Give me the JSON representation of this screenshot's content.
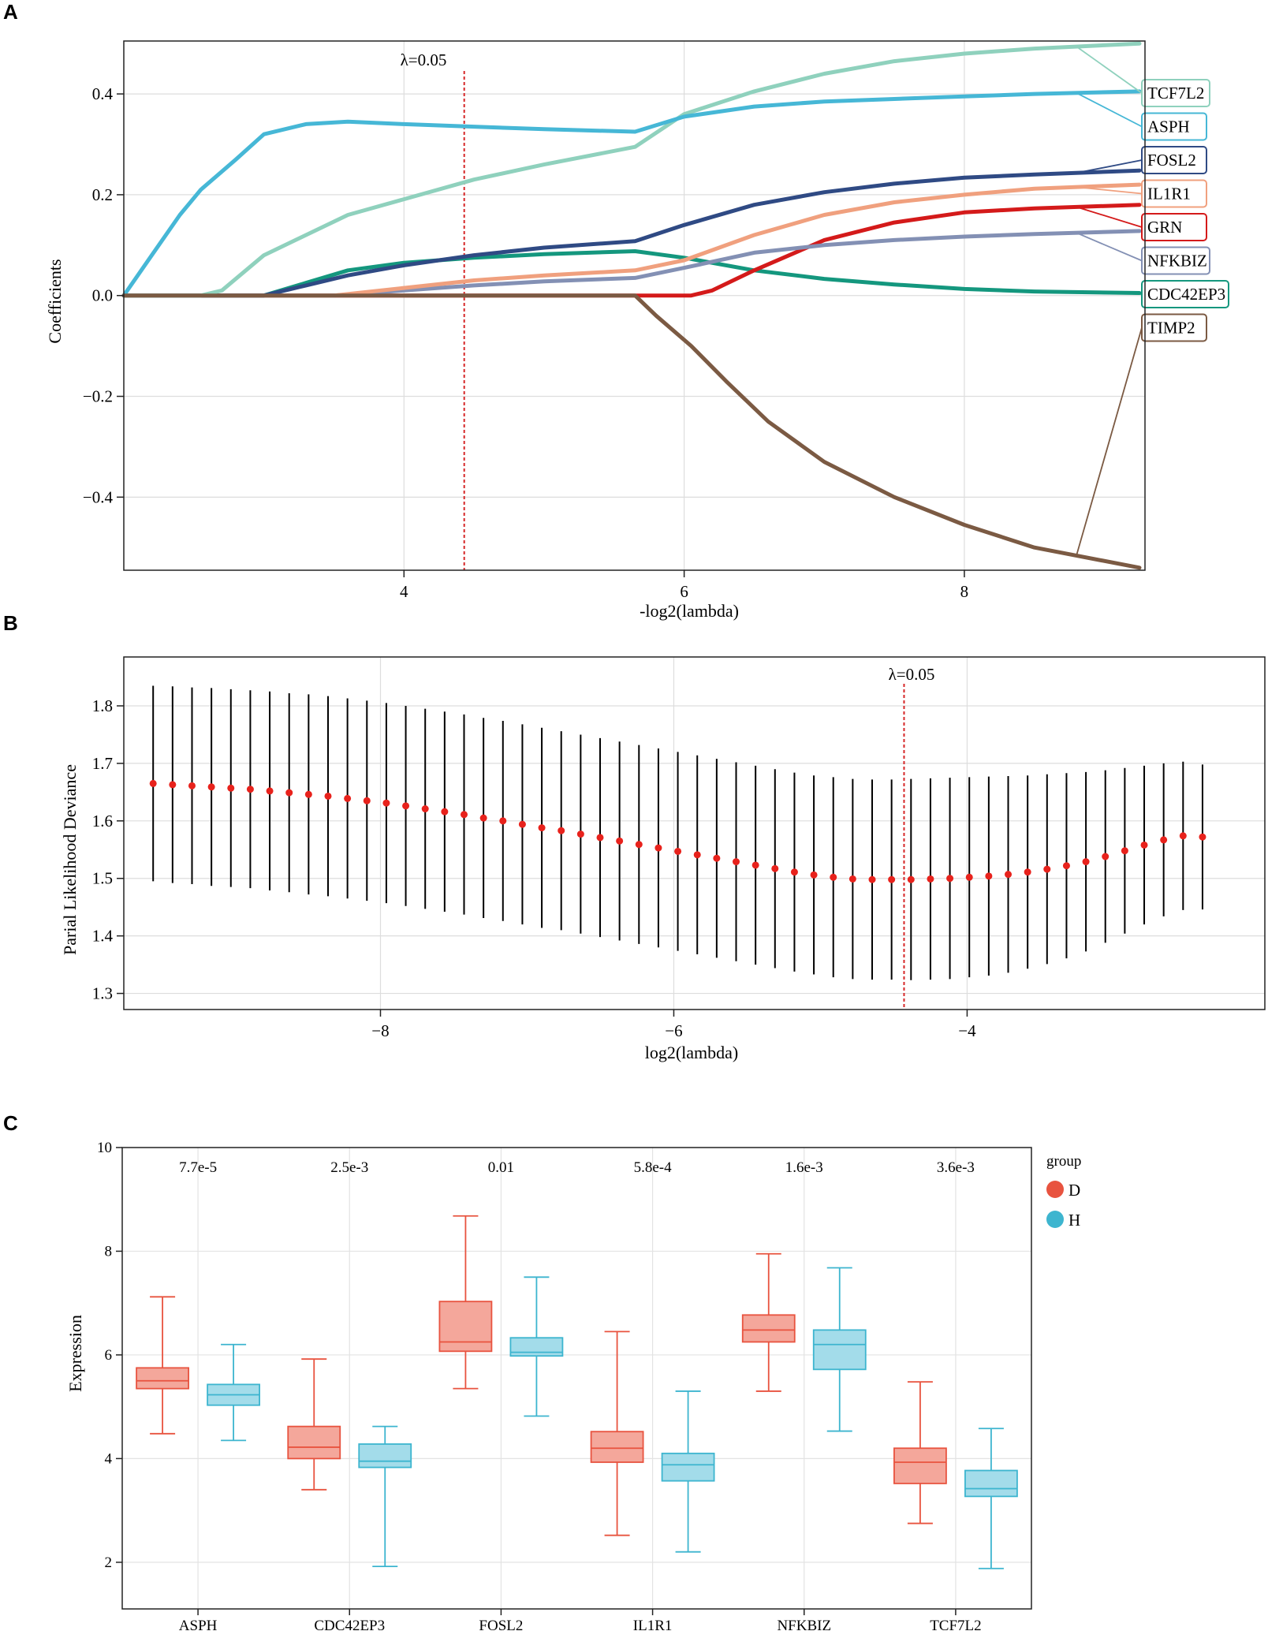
{
  "panels": {
    "a": "A",
    "b": "B",
    "c": "C"
  },
  "chart_data": [
    {
      "type": "line",
      "id": "lasso-coefficient-paths",
      "title": "",
      "xlabel": "-log2(lambda)",
      "ylabel": "Coefficients",
      "xlim": [
        2.0,
        9.25
      ],
      "ylim": [
        -0.545,
        0.505
      ],
      "xticks": [
        4,
        6,
        8
      ],
      "xtick_labels": [
        "4",
        "6",
        "8"
      ],
      "yticks": [
        -0.4,
        -0.2,
        0.0,
        0.2,
        0.4
      ],
      "ytick_labels": [
        "−0.4",
        "−0.2",
        "0.0",
        "0.2",
        "0.4"
      ],
      "grid": true,
      "vline": {
        "x": 4.43,
        "label": "λ=0.05",
        "color": "#d62728"
      },
      "series": [
        {
          "name": "TCF7L2",
          "color": "#8fd1bd",
          "x": [
            2.0,
            2.55,
            2.7,
            3.0,
            3.6,
            4.5,
            5.0,
            5.65,
            6.0,
            6.5,
            7.0,
            7.5,
            8.0,
            8.5,
            9.25
          ],
          "y": [
            0.0,
            0.0,
            0.01,
            0.08,
            0.16,
            0.23,
            0.26,
            0.295,
            0.36,
            0.405,
            0.44,
            0.465,
            0.48,
            0.49,
            0.5
          ],
          "label_y": 0.4
        },
        {
          "name": "ASPH",
          "color": "#46b7d6",
          "x": [
            2.0,
            2.2,
            2.4,
            2.55,
            2.8,
            3.0,
            3.3,
            3.6,
            4.0,
            4.5,
            5.0,
            5.65,
            6.0,
            6.5,
            7.0,
            7.5,
            8.0,
            8.5,
            9.25
          ],
          "y": [
            0.0,
            0.08,
            0.16,
            0.21,
            0.27,
            0.32,
            0.34,
            0.345,
            0.34,
            0.335,
            0.33,
            0.325,
            0.355,
            0.375,
            0.385,
            0.39,
            0.395,
            0.4,
            0.405
          ],
          "label_y": 0.335
        },
        {
          "name": "FOSL2",
          "color": "#2f4a84",
          "x": [
            2.0,
            2.7,
            3.0,
            3.3,
            3.6,
            4.0,
            4.5,
            5.0,
            5.65,
            6.0,
            6.5,
            7.0,
            7.5,
            8.0,
            8.5,
            9.25
          ],
          "y": [
            0.0,
            0.0,
            0.0,
            0.02,
            0.04,
            0.06,
            0.08,
            0.095,
            0.108,
            0.14,
            0.18,
            0.205,
            0.222,
            0.234,
            0.24,
            0.248
          ],
          "label_y": 0.27
        },
        {
          "name": "IL1R1",
          "color": "#f0a07e",
          "x": [
            2.0,
            3.5,
            4.0,
            4.5,
            5.0,
            5.65,
            6.0,
            6.5,
            7.0,
            7.5,
            8.0,
            8.5,
            9.25
          ],
          "y": [
            0.0,
            0.0,
            0.015,
            0.03,
            0.04,
            0.05,
            0.07,
            0.12,
            0.16,
            0.185,
            0.2,
            0.212,
            0.22
          ],
          "label_y": 0.205
        },
        {
          "name": "GRN",
          "color": "#d41a1a",
          "x": [
            2.0,
            5.65,
            6.05,
            6.2,
            6.5,
            7.0,
            7.5,
            8.0,
            8.5,
            9.25
          ],
          "y": [
            0.0,
            0.0,
            0.0,
            0.01,
            0.05,
            0.11,
            0.145,
            0.165,
            0.173,
            0.18
          ],
          "label_y": 0.14
        },
        {
          "name": "NFKBIZ",
          "color": "#8390b4",
          "x": [
            2.0,
            3.5,
            4.0,
            4.5,
            5.0,
            5.65,
            6.0,
            6.5,
            7.0,
            7.5,
            8.0,
            8.5,
            9.25
          ],
          "y": [
            0.0,
            0.0,
            0.01,
            0.02,
            0.028,
            0.035,
            0.055,
            0.085,
            0.1,
            0.11,
            0.117,
            0.122,
            0.128
          ],
          "label_y": 0.075
        },
        {
          "name": "CDC42EP3",
          "color": "#14977e",
          "x": [
            2.0,
            3.0,
            3.3,
            3.6,
            4.0,
            4.5,
            5.0,
            5.65,
            6.0,
            6.5,
            7.0,
            7.5,
            8.0,
            8.5,
            9.25
          ],
          "y": [
            0.0,
            0.0,
            0.025,
            0.05,
            0.065,
            0.075,
            0.082,
            0.088,
            0.075,
            0.05,
            0.033,
            0.022,
            0.013,
            0.008,
            0.005
          ],
          "label_y": 0.005
        },
        {
          "name": "TIMP2",
          "color": "#7b5a43",
          "x": [
            2.0,
            5.65,
            5.8,
            6.05,
            6.3,
            6.6,
            7.0,
            7.5,
            8.0,
            8.5,
            9.25
          ],
          "y": [
            0.0,
            0.0,
            -0.04,
            -0.1,
            -0.17,
            -0.25,
            -0.33,
            -0.4,
            -0.455,
            -0.5,
            -0.54
          ],
          "label_y": -0.06
        }
      ]
    },
    {
      "type": "scatter",
      "id": "cv-deviance",
      "title": "",
      "xlabel": "log2(lambda)",
      "ylabel": "Parial Likelihood Deviance",
      "xlim": [
        -9.75,
        -1.97
      ],
      "ylim": [
        1.272,
        1.885
      ],
      "xticks": [
        -8,
        -6,
        -4
      ],
      "xtick_labels": [
        "−8",
        "−6",
        "−4"
      ],
      "yticks": [
        1.3,
        1.4,
        1.5,
        1.6,
        1.7,
        1.8
      ],
      "ytick_labels": [
        "1.3",
        "1.4",
        "1.5",
        "1.6",
        "1.7",
        "1.8"
      ],
      "grid": true,
      "vline": {
        "x": -4.43,
        "label": "λ=0.05",
        "color": "#d62728"
      },
      "point_color": "#e8221c",
      "errorbar_color": "#000000",
      "x_start": -9.55,
      "x_step": 0.1325,
      "mean": [
        1.665,
        1.663,
        1.661,
        1.659,
        1.657,
        1.655,
        1.652,
        1.649,
        1.646,
        1.643,
        1.639,
        1.635,
        1.631,
        1.626,
        1.621,
        1.616,
        1.611,
        1.605,
        1.6,
        1.594,
        1.588,
        1.583,
        1.577,
        1.571,
        1.565,
        1.559,
        1.553,
        1.547,
        1.541,
        1.535,
        1.529,
        1.523,
        1.517,
        1.511,
        1.506,
        1.502,
        1.499,
        1.498,
        1.498,
        1.498,
        1.499,
        1.5,
        1.502,
        1.504,
        1.507,
        1.511,
        1.516,
        1.522,
        1.529,
        1.538,
        1.548,
        1.558,
        1.567,
        1.574,
        1.572
      ],
      "upper": [
        1.835,
        1.834,
        1.832,
        1.831,
        1.829,
        1.827,
        1.825,
        1.822,
        1.82,
        1.817,
        1.813,
        1.809,
        1.805,
        1.8,
        1.795,
        1.79,
        1.785,
        1.779,
        1.774,
        1.768,
        1.762,
        1.756,
        1.75,
        1.744,
        1.738,
        1.732,
        1.726,
        1.72,
        1.714,
        1.708,
        1.702,
        1.696,
        1.69,
        1.684,
        1.679,
        1.676,
        1.673,
        1.672,
        1.672,
        1.673,
        1.674,
        1.675,
        1.676,
        1.677,
        1.678,
        1.679,
        1.681,
        1.683,
        1.685,
        1.688,
        1.692,
        1.696,
        1.7,
        1.703,
        1.698
      ],
      "lower": [
        1.495,
        1.492,
        1.49,
        1.487,
        1.485,
        1.483,
        1.479,
        1.476,
        1.472,
        1.469,
        1.465,
        1.461,
        1.457,
        1.452,
        1.447,
        1.442,
        1.437,
        1.431,
        1.426,
        1.42,
        1.414,
        1.41,
        1.404,
        1.398,
        1.392,
        1.386,
        1.38,
        1.374,
        1.368,
        1.362,
        1.356,
        1.35,
        1.344,
        1.338,
        1.333,
        1.328,
        1.325,
        1.324,
        1.324,
        1.323,
        1.324,
        1.325,
        1.328,
        1.331,
        1.336,
        1.343,
        1.351,
        1.361,
        1.373,
        1.388,
        1.404,
        1.42,
        1.434,
        1.445,
        1.446
      ]
    },
    {
      "type": "box",
      "id": "expression-boxplot",
      "title": "",
      "xlabel": "",
      "ylabel": "Expression",
      "ylim": [
        1.1,
        10.0
      ],
      "yticks": [
        2,
        4,
        6,
        8,
        10
      ],
      "ytick_labels": [
        "2",
        "4",
        "6",
        "8",
        "10"
      ],
      "grid": true,
      "categories": [
        "ASPH",
        "CDC42EP3",
        "FOSL2",
        "IL1R1",
        "NFKBIZ",
        "TCF7L2"
      ],
      "pvalues": [
        "7.7e-5",
        "2.5e-3",
        "0.01",
        "5.8e-4",
        "1.6e-3",
        "3.6e-3"
      ],
      "legend": {
        "title": "group",
        "position": "right",
        "entries": [
          {
            "label": "D",
            "color": "#e8533f",
            "fill": "#f4a79b"
          },
          {
            "label": "H",
            "color": "#3db5cf",
            "fill": "#a3dcea"
          }
        ]
      },
      "series": [
        {
          "name": "D",
          "stats": [
            {
              "min": 4.48,
              "q1": 5.35,
              "median": 5.5,
              "q3": 5.75,
              "max": 7.12
            },
            {
              "min": 3.4,
              "q1": 4.0,
              "median": 4.22,
              "q3": 4.62,
              "max": 5.92
            },
            {
              "min": 5.35,
              "q1": 6.07,
              "median": 6.25,
              "q3": 7.03,
              "max": 8.68
            },
            {
              "min": 2.52,
              "q1": 3.93,
              "median": 4.2,
              "q3": 4.52,
              "max": 6.45
            },
            {
              "min": 5.3,
              "q1": 6.25,
              "median": 6.48,
              "q3": 6.77,
              "max": 7.95
            },
            {
              "min": 2.75,
              "q1": 3.52,
              "median": 3.93,
              "q3": 4.2,
              "max": 5.48
            }
          ]
        },
        {
          "name": "H",
          "stats": [
            {
              "min": 4.35,
              "q1": 5.03,
              "median": 5.23,
              "q3": 5.43,
              "max": 6.2
            },
            {
              "min": 1.92,
              "q1": 3.83,
              "median": 3.95,
              "q3": 4.28,
              "max": 4.62
            },
            {
              "min": 4.82,
              "q1": 5.98,
              "median": 6.05,
              "q3": 6.33,
              "max": 7.5
            },
            {
              "min": 2.2,
              "q1": 3.57,
              "median": 3.88,
              "q3": 4.1,
              "max": 5.3
            },
            {
              "min": 4.53,
              "q1": 5.72,
              "median": 6.2,
              "q3": 6.48,
              "max": 7.68
            },
            {
              "min": 1.88,
              "q1": 3.27,
              "median": 3.42,
              "q3": 3.77,
              "max": 4.58
            }
          ]
        }
      ]
    }
  ]
}
